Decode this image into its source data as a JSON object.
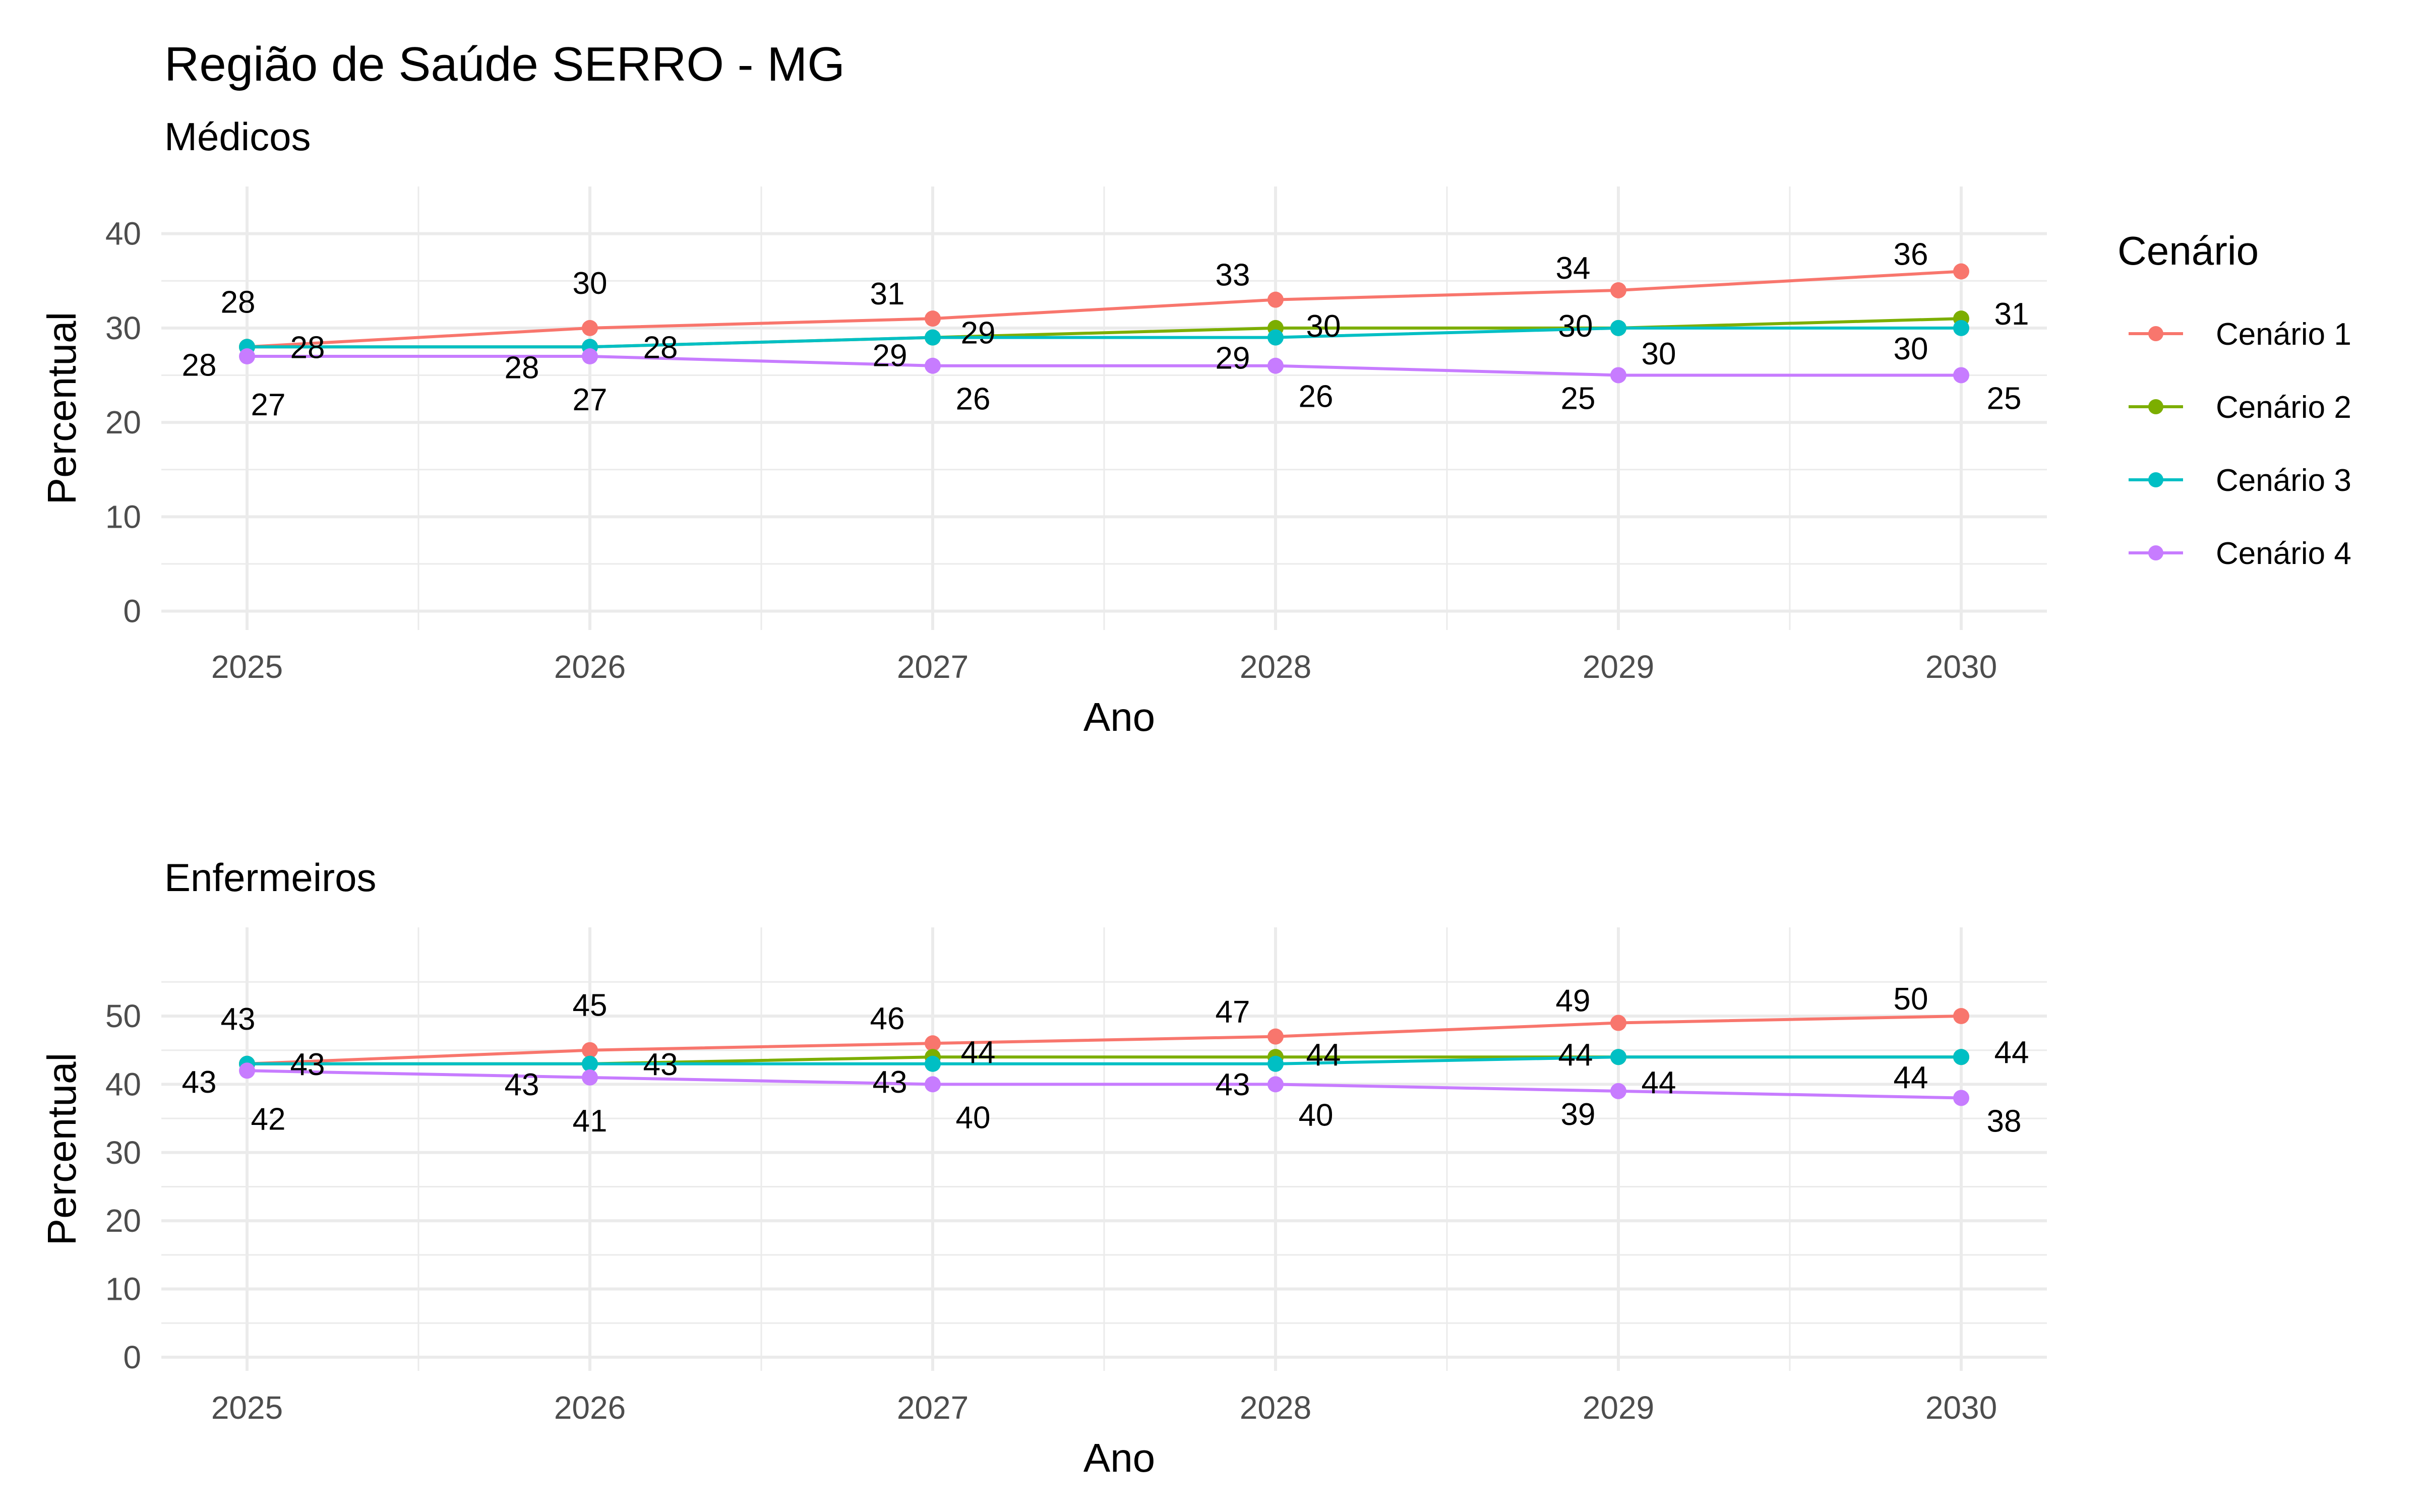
{
  "title": "Região de Saúde SERRO - MG",
  "legend": {
    "title": "Cenário",
    "placement": "right",
    "items": [
      {
        "name": "Cenário 1",
        "color": "#F8766D"
      },
      {
        "name": "Cenário 2",
        "color": "#7CAE00"
      },
      {
        "name": "Cenário 3",
        "color": "#00BFC4"
      },
      {
        "name": "Cenário 4",
        "color": "#C77CFF"
      }
    ]
  },
  "chart_data": [
    {
      "type": "line",
      "subtitle": "Médicos",
      "xlabel": "Ano",
      "ylabel": "Percentual",
      "x": [
        2025,
        2026,
        2027,
        2028,
        2029,
        2030
      ],
      "xticks": [
        "2025",
        "2026",
        "2027",
        "2028",
        "2029",
        "2030"
      ],
      "yticks": [
        0,
        10,
        20,
        30,
        40
      ],
      "ylim": [
        -2,
        45
      ],
      "grid": true,
      "series": [
        {
          "name": "Cenário 1",
          "color": "#F8766D",
          "values": [
            28,
            30,
            31,
            33,
            34,
            36
          ]
        },
        {
          "name": "Cenário 2",
          "color": "#7CAE00",
          "values": [
            28,
            28,
            29,
            30,
            30,
            31
          ]
        },
        {
          "name": "Cenário 3",
          "color": "#00BFC4",
          "values": [
            28,
            28,
            29,
            29,
            30,
            30
          ]
        },
        {
          "name": "Cenário 4",
          "color": "#C77CFF",
          "values": [
            27,
            27,
            26,
            26,
            25,
            25
          ]
        }
      ]
    },
    {
      "type": "line",
      "subtitle": "Enfermeiros",
      "xlabel": "Ano",
      "ylabel": "Percentual",
      "x": [
        2025,
        2026,
        2027,
        2028,
        2029,
        2030
      ],
      "xticks": [
        "2025",
        "2026",
        "2027",
        "2028",
        "2029",
        "2030"
      ],
      "yticks": [
        0,
        10,
        20,
        30,
        40,
        50
      ],
      "ylim": [
        -2,
        63
      ],
      "grid": true,
      "series": [
        {
          "name": "Cenário 1",
          "color": "#F8766D",
          "values": [
            43,
            45,
            46,
            47,
            49,
            50
          ]
        },
        {
          "name": "Cenário 2",
          "color": "#7CAE00",
          "values": [
            43,
            43,
            44,
            44,
            44,
            44
          ]
        },
        {
          "name": "Cenário 3",
          "color": "#00BFC4",
          "values": [
            43,
            43,
            43,
            43,
            44,
            44
          ]
        },
        {
          "name": "Cenário 4",
          "color": "#C77CFF",
          "values": [
            42,
            41,
            40,
            40,
            39,
            38
          ]
        }
      ]
    }
  ]
}
